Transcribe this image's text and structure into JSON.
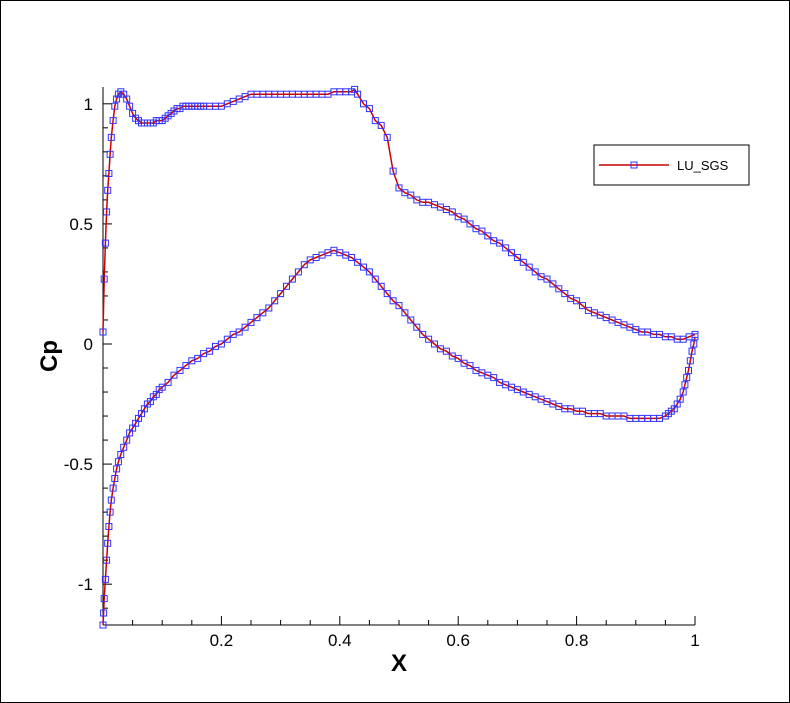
{
  "chart_data": {
    "type": "line",
    "title": "",
    "xlabel": "X",
    "ylabel": "Cp",
    "xlim": [
      0,
      1
    ],
    "ylim": [
      -1.17,
      1.07
    ],
    "x_ticks": [
      0.2,
      0.4,
      0.6,
      0.8,
      1
    ],
    "x_tick_labels": [
      "0.2",
      "0.4",
      "0.6",
      "0.8",
      "1"
    ],
    "y_ticks": [
      -1,
      -0.5,
      0,
      0.5,
      1
    ],
    "y_tick_labels": [
      "-1",
      "-0.5",
      "0",
      "0.5",
      "1"
    ],
    "grid": false,
    "legend_position": "top-right",
    "line_color": "#cc0000",
    "marker_color": "#3333ff",
    "marker": "square",
    "series": [
      {
        "name": "LU_SGS",
        "upper": {
          "x": [
            0,
            0.002,
            0.004,
            0.006,
            0.008,
            0.01,
            0.012,
            0.014,
            0.017,
            0.02,
            0.023,
            0.026,
            0.03,
            0.035,
            0.04,
            0.045,
            0.05,
            0.055,
            0.06,
            0.065,
            0.07,
            0.075,
            0.08,
            0.085,
            0.09,
            0.095,
            0.1,
            0.105,
            0.11,
            0.115,
            0.12,
            0.125,
            0.13,
            0.135,
            0.14,
            0.145,
            0.15,
            0.155,
            0.16,
            0.165,
            0.17,
            0.18,
            0.19,
            0.2,
            0.21,
            0.22,
            0.23,
            0.24,
            0.25,
            0.26,
            0.27,
            0.28,
            0.29,
            0.3,
            0.31,
            0.32,
            0.33,
            0.34,
            0.35,
            0.36,
            0.37,
            0.38,
            0.39,
            0.4,
            0.41,
            0.42,
            0.425,
            0.43,
            0.44,
            0.45,
            0.46,
            0.47,
            0.48,
            0.49,
            0.5,
            0.51,
            0.52,
            0.53,
            0.54,
            0.55,
            0.56,
            0.57,
            0.58,
            0.59,
            0.6,
            0.61,
            0.62,
            0.63,
            0.64,
            0.65,
            0.66,
            0.67,
            0.68,
            0.69,
            0.7,
            0.71,
            0.72,
            0.73,
            0.74,
            0.75,
            0.76,
            0.77,
            0.78,
            0.79,
            0.8,
            0.81,
            0.82,
            0.83,
            0.84,
            0.85,
            0.86,
            0.87,
            0.88,
            0.89,
            0.9,
            0.91,
            0.92,
            0.93,
            0.94,
            0.95,
            0.96,
            0.97,
            0.98,
            0.99,
            1.0
          ],
          "y": [
            0.05,
            0.27,
            0.42,
            0.55,
            0.64,
            0.71,
            0.79,
            0.86,
            0.93,
            0.99,
            1.02,
            1.04,
            1.05,
            1.04,
            1.02,
            0.99,
            0.96,
            0.94,
            0.93,
            0.92,
            0.92,
            0.92,
            0.92,
            0.92,
            0.93,
            0.93,
            0.93,
            0.94,
            0.95,
            0.96,
            0.97,
            0.98,
            0.98,
            0.99,
            0.99,
            0.99,
            0.99,
            0.99,
            0.99,
            0.99,
            0.99,
            0.99,
            0.99,
            0.99,
            1.0,
            1.01,
            1.02,
            1.03,
            1.04,
            1.04,
            1.04,
            1.04,
            1.04,
            1.04,
            1.04,
            1.04,
            1.04,
            1.04,
            1.04,
            1.04,
            1.04,
            1.04,
            1.05,
            1.05,
            1.05,
            1.05,
            1.06,
            1.04,
            1.0,
            0.98,
            0.93,
            0.91,
            0.86,
            0.72,
            0.65,
            0.63,
            0.62,
            0.6,
            0.59,
            0.59,
            0.58,
            0.57,
            0.56,
            0.55,
            0.53,
            0.52,
            0.5,
            0.48,
            0.47,
            0.45,
            0.43,
            0.42,
            0.4,
            0.38,
            0.36,
            0.34,
            0.32,
            0.3,
            0.28,
            0.27,
            0.25,
            0.23,
            0.21,
            0.19,
            0.18,
            0.16,
            0.14,
            0.13,
            0.12,
            0.11,
            0.1,
            0.09,
            0.08,
            0.07,
            0.06,
            0.05,
            0.05,
            0.04,
            0.04,
            0.03,
            0.03,
            0.02,
            0.02,
            0.03,
            0.04
          ]
        },
        "lower": {
          "x": [
            0,
            0.001,
            0.002,
            0.004,
            0.006,
            0.008,
            0.01,
            0.012,
            0.014,
            0.017,
            0.02,
            0.023,
            0.026,
            0.03,
            0.035,
            0.04,
            0.045,
            0.05,
            0.055,
            0.06,
            0.065,
            0.07,
            0.075,
            0.08,
            0.085,
            0.09,
            0.095,
            0.1,
            0.11,
            0.12,
            0.13,
            0.14,
            0.15,
            0.16,
            0.17,
            0.18,
            0.19,
            0.2,
            0.21,
            0.22,
            0.23,
            0.24,
            0.25,
            0.26,
            0.27,
            0.28,
            0.29,
            0.3,
            0.31,
            0.32,
            0.33,
            0.34,
            0.35,
            0.36,
            0.37,
            0.38,
            0.39,
            0.4,
            0.41,
            0.42,
            0.43,
            0.44,
            0.45,
            0.46,
            0.47,
            0.48,
            0.49,
            0.5,
            0.51,
            0.52,
            0.53,
            0.54,
            0.55,
            0.56,
            0.57,
            0.58,
            0.59,
            0.6,
            0.61,
            0.62,
            0.63,
            0.64,
            0.65,
            0.66,
            0.67,
            0.68,
            0.69,
            0.7,
            0.71,
            0.72,
            0.73,
            0.74,
            0.75,
            0.76,
            0.77,
            0.78,
            0.79,
            0.8,
            0.81,
            0.82,
            0.83,
            0.84,
            0.85,
            0.86,
            0.87,
            0.88,
            0.89,
            0.9,
            0.91,
            0.92,
            0.93,
            0.94,
            0.95,
            0.955,
            0.96,
            0.965,
            0.97,
            0.975,
            0.98,
            0.983,
            0.986,
            0.989,
            0.992,
            0.995,
            0.998,
            1.0
          ],
          "y": [
            -1.17,
            -1.12,
            -1.06,
            -0.98,
            -0.9,
            -0.83,
            -0.76,
            -0.7,
            -0.65,
            -0.6,
            -0.56,
            -0.52,
            -0.49,
            -0.46,
            -0.43,
            -0.4,
            -0.37,
            -0.35,
            -0.33,
            -0.31,
            -0.29,
            -0.27,
            -0.25,
            -0.24,
            -0.22,
            -0.21,
            -0.19,
            -0.18,
            -0.16,
            -0.13,
            -0.11,
            -0.09,
            -0.07,
            -0.06,
            -0.04,
            -0.03,
            -0.01,
            0.0,
            0.02,
            0.04,
            0.05,
            0.07,
            0.09,
            0.11,
            0.13,
            0.15,
            0.18,
            0.21,
            0.24,
            0.27,
            0.3,
            0.33,
            0.35,
            0.36,
            0.37,
            0.38,
            0.39,
            0.38,
            0.37,
            0.36,
            0.34,
            0.32,
            0.3,
            0.27,
            0.24,
            0.21,
            0.18,
            0.16,
            0.13,
            0.1,
            0.07,
            0.04,
            0.02,
            0.0,
            -0.02,
            -0.03,
            -0.05,
            -0.06,
            -0.08,
            -0.09,
            -0.11,
            -0.12,
            -0.13,
            -0.14,
            -0.16,
            -0.17,
            -0.18,
            -0.19,
            -0.2,
            -0.21,
            -0.22,
            -0.23,
            -0.24,
            -0.25,
            -0.26,
            -0.27,
            -0.27,
            -0.28,
            -0.28,
            -0.29,
            -0.29,
            -0.29,
            -0.3,
            -0.3,
            -0.3,
            -0.3,
            -0.31,
            -0.31,
            -0.31,
            -0.31,
            -0.31,
            -0.31,
            -0.3,
            -0.29,
            -0.28,
            -0.27,
            -0.25,
            -0.23,
            -0.2,
            -0.17,
            -0.14,
            -0.11,
            -0.07,
            -0.03,
            0.0,
            0.03
          ]
        }
      }
    ]
  }
}
